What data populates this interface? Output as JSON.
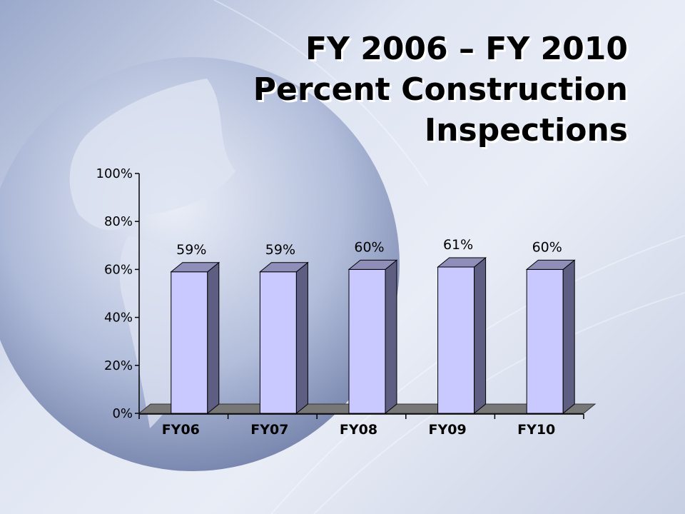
{
  "slide": {
    "title_line1": "FY 2006 – FY 2010",
    "title_line2": "Percent Construction",
    "title_line3": "Inspections"
  },
  "colors": {
    "bar_front": "#c9c8ff",
    "bar_side": "#5e5d82",
    "bar_top": "#8f8eb9",
    "floor": "#777777"
  },
  "chart_data": {
    "type": "bar",
    "categories": [
      "FY06",
      "FY07",
      "FY08",
      "FY09",
      "FY10"
    ],
    "values": [
      59,
      59,
      60,
      61,
      60
    ],
    "data_labels": [
      "59%",
      "59%",
      "60%",
      "61%",
      "60%"
    ],
    "ytick_labels": [
      "0%",
      "20%",
      "40%",
      "60%",
      "80%",
      "100%"
    ],
    "ylim": [
      0,
      100
    ],
    "title": "",
    "xlabel": "",
    "ylabel": "",
    "grid": false,
    "legend": "none"
  }
}
